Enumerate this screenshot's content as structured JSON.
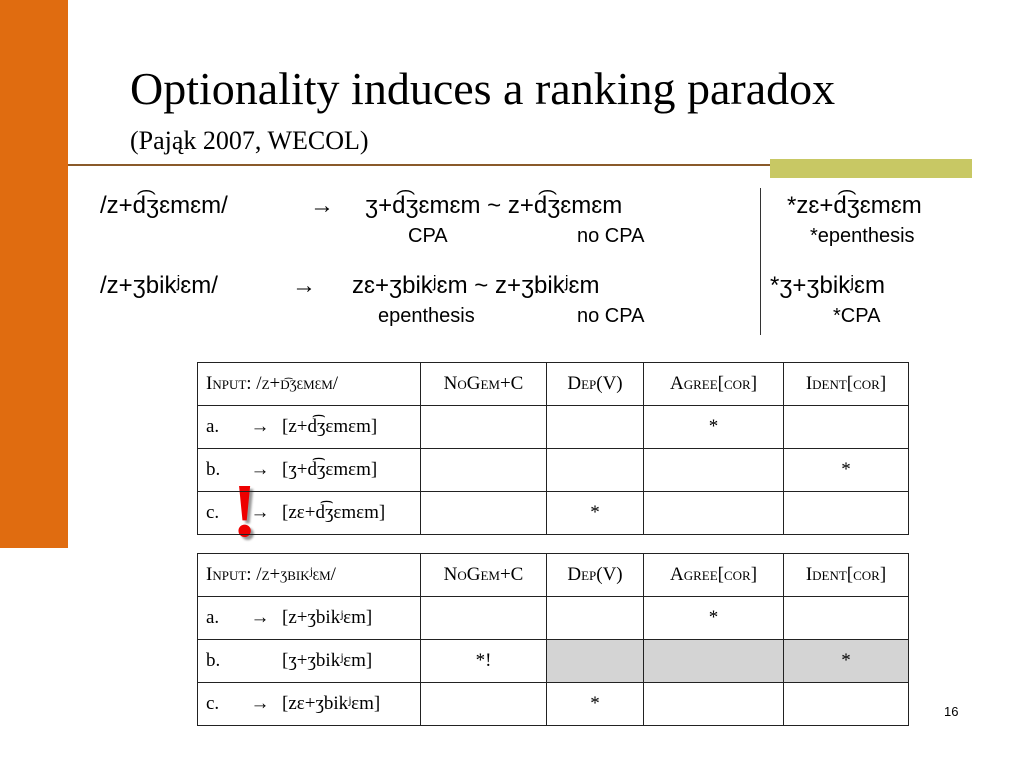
{
  "title": "Optionality induces a ranking paradox",
  "subtitle": "(Pająk 2007, WECOL)",
  "examples": [
    {
      "input": "/z+d͡ʒɛmɛm/",
      "arrow": "→",
      "output": "ʒ+d͡ʒɛmɛm ~ z+d͡ʒɛmɛm",
      "labels": [
        "CPA",
        "no CPA"
      ],
      "excluded": "*zɛ+d͡ʒɛmɛm",
      "excluded_label": "*epenthesis"
    },
    {
      "input": "/z+ʒbikʲɛm/",
      "arrow": "→",
      "output": "zɛ+ʒbikʲɛm ~ z+ʒbikʲɛm",
      "labels": [
        "epenthesis",
        "no CPA"
      ],
      "excluded": "*ʒ+ʒbikʲɛm",
      "excluded_label": "*CPA"
    }
  ],
  "tableaux": [
    {
      "header": [
        "Input: /z+d͡ʒɛmɛm/",
        "NoGem+C",
        "Dep(V)",
        "Agree[cor]",
        "Ident[cor]"
      ],
      "rows": [
        {
          "label": "a.",
          "arrow": "→",
          "candidate": "[z+d͡ʒɛmɛm]",
          "cells": [
            null,
            null,
            "*",
            null
          ]
        },
        {
          "label": "b.",
          "arrow": "→",
          "candidate": "[ʒ+d͡ʒɛmɛm]",
          "cells": [
            null,
            null,
            null,
            "*"
          ]
        },
        {
          "label": "c.",
          "arrow": "→",
          "candidate": "[zɛ+d͡ʒɛmɛm]",
          "cells": [
            null,
            "*",
            null,
            null
          ]
        }
      ]
    },
    {
      "header": [
        "Input: /z+ʒbikʲɛm/",
        "NoGem+C",
        "Dep(V)",
        "Agree[cor]",
        "Ident[cor]"
      ],
      "rows": [
        {
          "label": "a.",
          "arrow": "→",
          "candidate": "[z+ʒbikʲɛm]",
          "cells": [
            null,
            null,
            "*",
            null
          ]
        },
        {
          "label": "b.",
          "candidate": "[ʒ+ʒbikʲɛm]",
          "cells": [
            "*!",
            null,
            null,
            "*"
          ],
          "shaded": true
        },
        {
          "label": "c.",
          "arrow": "→",
          "candidate": "[zɛ+ʒbikʲɛm]",
          "cells": [
            null,
            "*",
            null,
            null
          ]
        }
      ]
    }
  ],
  "warning": "!",
  "page_number": "16"
}
